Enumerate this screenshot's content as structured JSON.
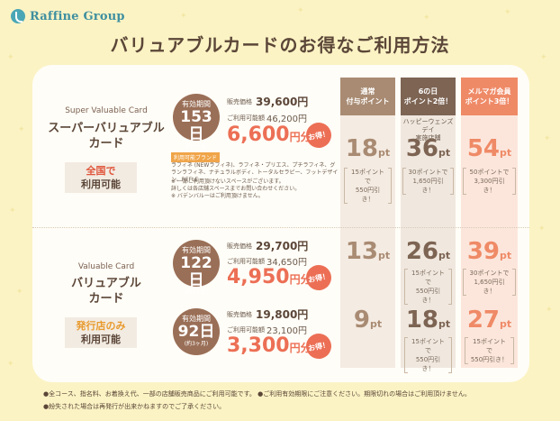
{
  "brand": {
    "name": "Raffine Group"
  },
  "title": "バリュアブルカードのお得なご利用方法",
  "columns": [
    {
      "id": "normal",
      "line1": "通常",
      "line2": "付与ポイント",
      "header_color": "#a98b73",
      "bg_color": "#f4ebe2"
    },
    {
      "id": "sixth",
      "line1": "6の日",
      "line2": "ポイント2倍！",
      "header_color": "#7d6453",
      "bg_color": "#f0e8df"
    },
    {
      "id": "mailmag",
      "line1": "メルマガ会員",
      "line2": "ポイント3倍！",
      "header_color": "#ef8a67",
      "bg_color": "#fce6dc"
    }
  ],
  "sixth_sub": {
    "line1": "ハッピーウェンズデイ",
    "line2": "実施店舗"
  },
  "cards": [
    {
      "en": "Super Valuable Card",
      "jp_line1": "スーパーバリュアブル",
      "jp_line2": "カード",
      "area_line1": "全国で",
      "area_line2": "利用可能",
      "area_color": "#e0563c",
      "plans": [
        {
          "validity_label": "有効期間",
          "validity_value": "153日",
          "validity_sub": "(約5ヶ月)",
          "sale_label": "販売価格",
          "sale_value": "39,600円",
          "use_label": "ご利用可能額",
          "use_value": "46,200円",
          "benefit_num": "6,600",
          "benefit_unit": "円分",
          "otoku": "お得！",
          "points": [
            {
              "num": "18",
              "unit": "pt",
              "note1": "15ポイントで",
              "note2": "550円引き！",
              "color": "#a98b73"
            },
            {
              "num": "36",
              "unit": "pt",
              "note1": "30ポイントで",
              "note2": "1,650円引き！",
              "color": "#7d6453"
            },
            {
              "num": "54",
              "unit": "pt",
              "note1": "50ポイントで",
              "note2": "3,300円引き！",
              "color": "#ef8a67"
            }
          ]
        }
      ],
      "brands_tag": "利用可能ブランド",
      "brands_text": "ラフィネ (NEWラフィネ)、ラフィネ・プリエス、プチラフィネ、グランラフィネ、ナチュラルボディ、トータルセラピー、フットデザイン、REFLE",
      "notes": [
        "※ 一部ご利用頂けないスペースがございます。",
        "詳しくは各店舗スペースまでお問い合わせください。",
        "※ バデンバルーはご利用頂けません。"
      ]
    },
    {
      "en": "Valuable Card",
      "jp_line1": "バリュアブル",
      "jp_line2": "カード",
      "area_line1": "発行店のみ",
      "area_line2": "利用可能",
      "area_color": "#e89a2c",
      "plans": [
        {
          "validity_label": "有効期間",
          "validity_value": "122日",
          "validity_sub": "(約4ヶ月)",
          "sale_label": "販売価格",
          "sale_value": "29,700円",
          "use_label": "ご利用可能額",
          "use_value": "34,650円",
          "benefit_num": "4,950",
          "benefit_unit": "円分",
          "otoku": "お得！",
          "points": [
            {
              "num": "13",
              "unit": "pt",
              "note1": "",
              "note2": "",
              "color": "#a98b73"
            },
            {
              "num": "26",
              "unit": "pt",
              "note1": "15ポイントで",
              "note2": "550円引き！",
              "color": "#7d6453"
            },
            {
              "num": "39",
              "unit": "pt",
              "note1": "30ポイントで",
              "note2": "1,650円引き！",
              "color": "#ef8a67"
            }
          ]
        },
        {
          "validity_label": "有効期間",
          "validity_value": "92日",
          "validity_sub": "(約3ヶ月)",
          "sale_label": "販売価格",
          "sale_value": "19,800円",
          "use_label": "ご利用可能額",
          "use_value": "23,100円",
          "benefit_num": "3,300",
          "benefit_unit": "円分",
          "otoku": "お得！",
          "points": [
            {
              "num": "9",
              "unit": "pt",
              "note1": "",
              "note2": "",
              "color": "#a98b73"
            },
            {
              "num": "18",
              "unit": "pt",
              "note1": "15ポイントで",
              "note2": "550円引き！",
              "color": "#7d6453"
            },
            {
              "num": "27",
              "unit": "pt",
              "note1": "15ポイントで",
              "note2": "550円引き！",
              "color": "#ef8a67"
            }
          ]
        }
      ]
    }
  ],
  "footer": {
    "line1": "●全コース、指名料、お着換え代、一部の店舗販売商品にご利用可能です。 ●ご利用有効期限にご注意ください。期限切れの場合はご利用頂けません。",
    "line2": "●紛失された場合は再発行が出来かねますのでご了承ください。"
  }
}
